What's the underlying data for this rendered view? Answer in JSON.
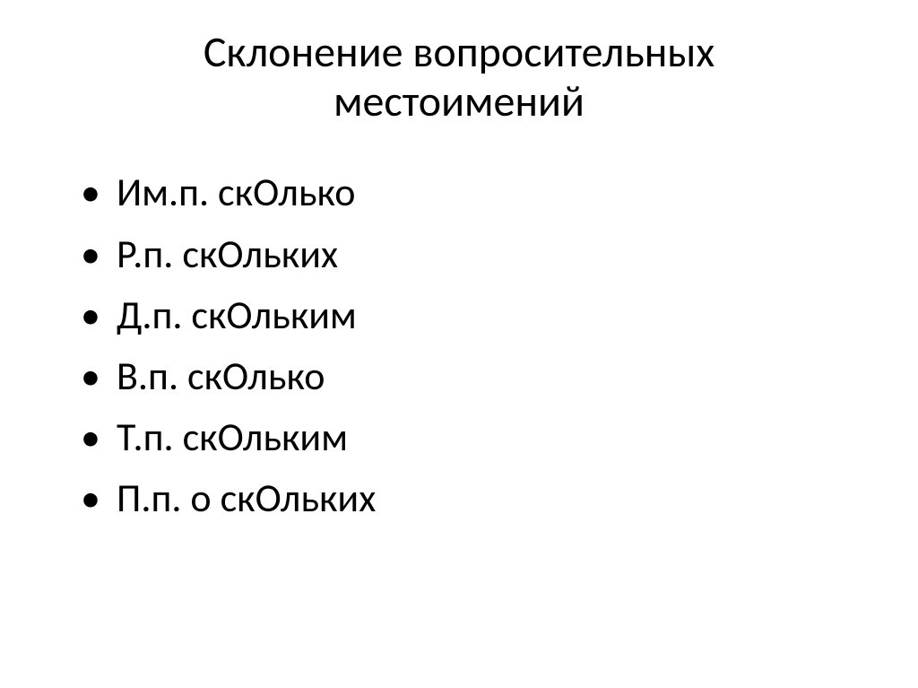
{
  "title_line1": "Склонение вопросительных",
  "title_line2": "местоимений",
  "items": [
    "Им.п.  скОлько",
    "Р.п.   скОльких",
    "Д.п. скОльким",
    "В.п. скОлько",
    "Т.п. скОльким",
    "П.п. о скОльких"
  ],
  "colors": {
    "background": "#ffffff",
    "text": "#000000",
    "bullet": "#000000"
  },
  "typography": {
    "title_fontsize_pt": 36,
    "body_fontsize_pt": 33,
    "font_family": "Calibri"
  }
}
